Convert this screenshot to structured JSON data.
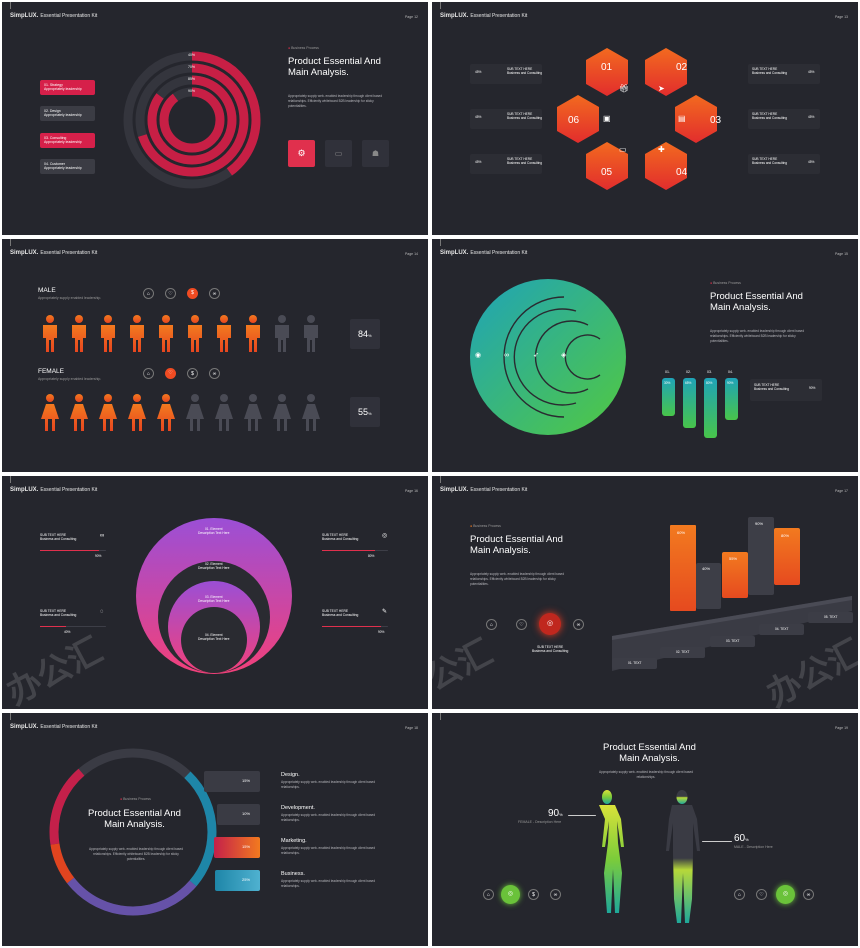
{
  "brand": {
    "name": "SimpLUX.",
    "sub": "Essential Presentation Kit"
  },
  "lorem": "Appropriately supply web- enabled leadership through client based relationships. Efficiently whiteboard B2B leadership for sticky potentialities.",
  "s1": {
    "page": "Page 12",
    "tag": "Business Process",
    "title1": "Product Essential And",
    "title2": "Main Analysis.",
    "rings": [
      "40%",
      "70%",
      "85%",
      "90%"
    ],
    "items": [
      {
        "n": "01. Strategy",
        "d": "Appropriately leadership"
      },
      {
        "n": "02. Design",
        "d": "Appropriately leadership"
      },
      {
        "n": "03. Consulting",
        "d": "Appropriately leadership"
      },
      {
        "n": "04. Customer",
        "d": "Appropriately leadership"
      }
    ]
  },
  "s2": {
    "page": "Page 13",
    "nums": [
      "01",
      "02",
      "03",
      "04",
      "05",
      "06"
    ],
    "pct": "45%",
    "sub": "SUB TEXT HERE",
    "biz": "Business and Consulting"
  },
  "s3": {
    "page": "Page 14",
    "male": "MALE",
    "female": "FEMALE",
    "note": "Appropriately supply enabled leadership.",
    "male_pct": "84",
    "female_pct": "55",
    "unit": "%",
    "male_value": 84,
    "female_value": 55
  },
  "s4": {
    "page": "Page 15",
    "tag": "Business Process",
    "title1": "Product Essential And",
    "title2": "Main Analysis.",
    "bars": [
      {
        "n": "01.",
        "v": "30%"
      },
      {
        "n": "02.",
        "v": "65%"
      },
      {
        "n": "03.",
        "v": "80%"
      },
      {
        "n": "04.",
        "v": "90%"
      }
    ],
    "sub": "SUB TEXT HERE",
    "biz": "Business and Consulting",
    "pct": "90%"
  },
  "s5": {
    "page": "Page 16",
    "sub": "SUB TEXT HERE",
    "biz": "Business and Consulting",
    "side": [
      "90%",
      "80%",
      "40%",
      "90%"
    ],
    "el": [
      {
        "t": "01. Element",
        "d": "Description Text Here"
      },
      {
        "t": "02. Element",
        "d": "Description Text Here"
      },
      {
        "t": "03. Element",
        "d": "Description Text Here"
      },
      {
        "t": "04. Element",
        "d": "Description Text Here"
      }
    ]
  },
  "s6": {
    "page": "Page 17",
    "tag": "Business Process",
    "title1": "Product Essential And",
    "title2": "Main Analysis.",
    "sub": "SUB TEXT HERE",
    "biz": "Business and Consulting",
    "bars": [
      "60%",
      "40%",
      "55%",
      "90%",
      "80%"
    ],
    "steps": [
      "01. TEXT",
      "02. TEXT",
      "03. TEXT",
      "04. TEXT",
      "05. TEXT"
    ]
  },
  "s7": {
    "page": "Page 18",
    "tag": "Business Process",
    "title1": "Product Essential And",
    "title2": "Main Analysis.",
    "rows": [
      {
        "v": "15%",
        "h": "Design."
      },
      {
        "v": "10%",
        "h": "Development."
      },
      {
        "v": "15%",
        "h": "Marketing."
      },
      {
        "v": "25%",
        "h": "Business."
      }
    ],
    "rowtext": "Appropriately supply web- enabled leadership through client based relationships."
  },
  "s8": {
    "page": "Page 19",
    "title1": "Product Essential And",
    "title2": "Main Analysis.",
    "lead": "Appropriately supply web- enabled leadership through client based relationships.",
    "f_pct": "90",
    "f_lbl": "FEMALE - Description Here",
    "m_pct": "60",
    "m_lbl": "MALE - Description Here",
    "unit": "%"
  },
  "watermark": "办公汇"
}
